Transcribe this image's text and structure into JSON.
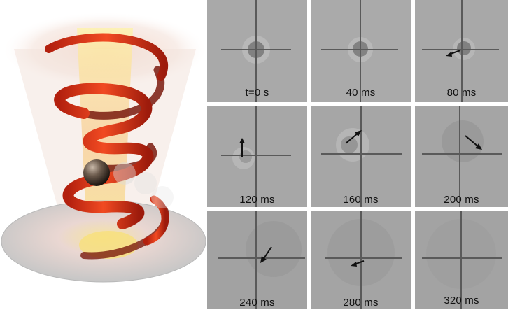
{
  "figure": {
    "illustration": {
      "description_icon": "helical-beam-trapped-particle-icon",
      "colors": {
        "helix": "#e23a1a",
        "glow": "#f7e27a",
        "particle": "#5a4a3e",
        "disc": "#cfcfcf"
      }
    },
    "frames": [
      {
        "label": "t=0 s",
        "arrow": "none"
      },
      {
        "label": "40 ms",
        "arrow": "none"
      },
      {
        "label": "80 ms",
        "arrow": "left"
      },
      {
        "label": "120 ms",
        "arrow": "up"
      },
      {
        "label": "160 ms",
        "arrow": "up-right"
      },
      {
        "label": "200 ms",
        "arrow": "down-right"
      },
      {
        "label": "240 ms",
        "arrow": "down-left"
      },
      {
        "label": "280 ms",
        "arrow": "left"
      },
      {
        "label": "320 ms",
        "arrow": "none"
      }
    ]
  }
}
